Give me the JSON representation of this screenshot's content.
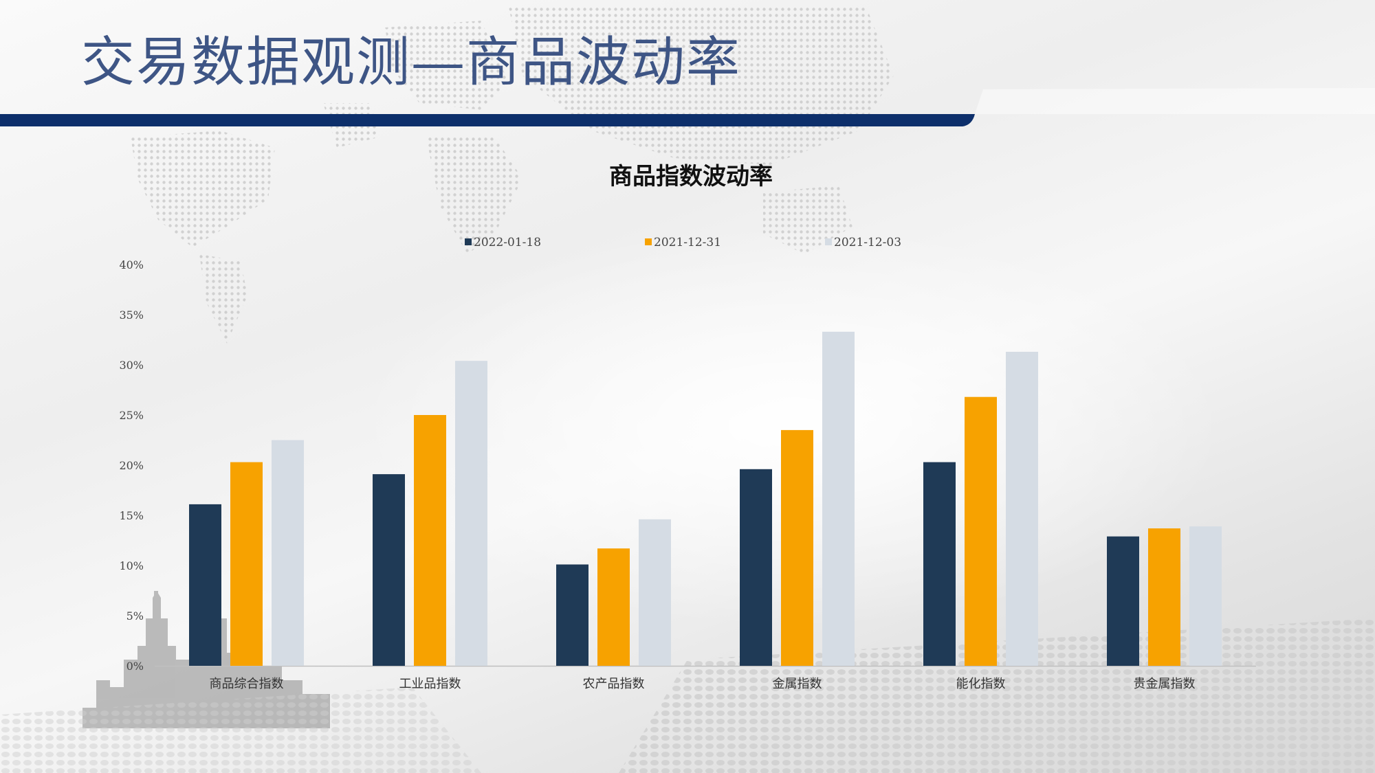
{
  "slide": {
    "title": "交易数据观测—商品波动率"
  },
  "colors": {
    "title_text": "#3e5585",
    "title_bar": "#0d2f6b",
    "series": [
      "#1f3a56",
      "#f7a200",
      "#d5dce4"
    ]
  },
  "chart_data": {
    "type": "bar",
    "title": "商品指数波动率",
    "categories": [
      "商品综合指数",
      "工业品指数",
      "农产品指数",
      "金属指数",
      "能化指数",
      "贵金属指数"
    ],
    "series": [
      {
        "name": "2022-01-18",
        "values": [
          16.1,
          19.1,
          10.1,
          19.6,
          20.3,
          12.9
        ]
      },
      {
        "name": "2021-12-31",
        "values": [
          20.3,
          25.0,
          11.7,
          23.5,
          26.8,
          13.7
        ]
      },
      {
        "name": "2021-12-03",
        "values": [
          22.5,
          30.4,
          14.6,
          33.3,
          31.3,
          13.9
        ]
      }
    ],
    "ylim": [
      0,
      40
    ],
    "yticks": [
      0,
      5,
      10,
      15,
      20,
      25,
      30,
      35,
      40
    ],
    "ytick_labels": [
      "0%",
      "5%",
      "10%",
      "15%",
      "20%",
      "25%",
      "30%",
      "35%",
      "40%"
    ],
    "legend_position": "top",
    "grid": false
  }
}
